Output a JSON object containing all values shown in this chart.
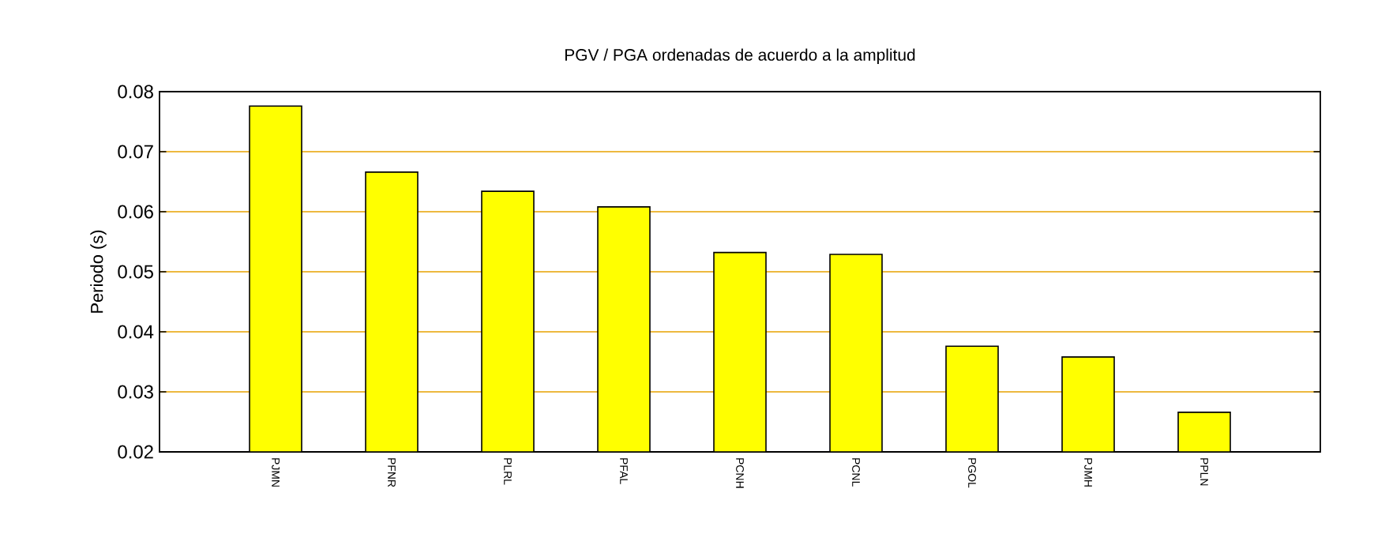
{
  "chart_data": {
    "type": "bar",
    "title": "PGV / PGA ordenadas de acuerdo a la amplitud",
    "ylabel": "Periodo (s)",
    "categories": [
      "PJMN",
      "PFNR",
      "PLRL",
      "PFAL",
      "PCNH",
      "PCNL",
      "PGOL",
      "PJMH",
      "PPLN"
    ],
    "values": [
      0.0776,
      0.0666,
      0.0634,
      0.0608,
      0.0532,
      0.0529,
      0.0376,
      0.0358,
      0.0266
    ],
    "color": "#ffff00",
    "ylim": [
      0.02,
      0.08
    ],
    "yticks": [
      0.02,
      0.03,
      0.04,
      0.05,
      0.06,
      0.07,
      0.08
    ],
    "grid": "y"
  }
}
